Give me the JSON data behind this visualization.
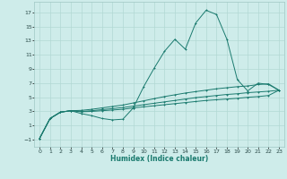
{
  "xlabel": "Humidex (Indice chaleur)",
  "bg_color": "#ceecea",
  "grid_color": "#b2d8d4",
  "line_color": "#1a7a6e",
  "xlim": [
    -0.5,
    23.5
  ],
  "ylim": [
    -2.0,
    18.5
  ],
  "xticks": [
    0,
    1,
    2,
    3,
    4,
    5,
    6,
    7,
    8,
    9,
    10,
    11,
    12,
    13,
    14,
    15,
    16,
    17,
    18,
    19,
    20,
    21,
    22,
    23
  ],
  "yticks": [
    -1,
    1,
    3,
    5,
    7,
    9,
    11,
    13,
    15,
    17
  ],
  "series1": [
    [
      0,
      -0.8
    ],
    [
      1,
      2.0
    ],
    [
      2,
      2.9
    ],
    [
      3,
      3.1
    ],
    [
      4,
      2.7
    ],
    [
      5,
      2.4
    ],
    [
      6,
      2.0
    ],
    [
      7,
      1.8
    ],
    [
      8,
      1.9
    ],
    [
      9,
      3.5
    ],
    [
      10,
      6.5
    ],
    [
      11,
      9.1
    ],
    [
      12,
      11.5
    ],
    [
      13,
      13.2
    ],
    [
      14,
      11.8
    ],
    [
      15,
      15.5
    ],
    [
      16,
      17.3
    ],
    [
      17,
      16.7
    ],
    [
      18,
      13.2
    ],
    [
      19,
      7.5
    ],
    [
      20,
      5.9
    ],
    [
      21,
      7.0
    ],
    [
      22,
      6.8
    ],
    [
      23,
      6.0
    ]
  ],
  "series2": [
    [
      0,
      -0.8
    ],
    [
      1,
      2.0
    ],
    [
      2,
      2.9
    ],
    [
      3,
      3.1
    ],
    [
      4,
      3.15
    ],
    [
      5,
      3.3
    ],
    [
      6,
      3.5
    ],
    [
      7,
      3.7
    ],
    [
      8,
      3.9
    ],
    [
      9,
      4.2
    ],
    [
      10,
      4.5
    ],
    [
      11,
      4.8
    ],
    [
      12,
      5.1
    ],
    [
      13,
      5.35
    ],
    [
      14,
      5.6
    ],
    [
      15,
      5.8
    ],
    [
      16,
      6.0
    ],
    [
      17,
      6.2
    ],
    [
      18,
      6.35
    ],
    [
      19,
      6.5
    ],
    [
      20,
      6.6
    ],
    [
      21,
      6.8
    ],
    [
      22,
      6.9
    ],
    [
      23,
      6.0
    ]
  ],
  "series3": [
    [
      0,
      -0.8
    ],
    [
      1,
      2.0
    ],
    [
      2,
      2.9
    ],
    [
      3,
      3.1
    ],
    [
      4,
      3.0
    ],
    [
      5,
      3.1
    ],
    [
      6,
      3.25
    ],
    [
      7,
      3.4
    ],
    [
      8,
      3.55
    ],
    [
      9,
      3.75
    ],
    [
      10,
      3.95
    ],
    [
      11,
      4.15
    ],
    [
      12,
      4.35
    ],
    [
      13,
      4.55
    ],
    [
      14,
      4.75
    ],
    [
      15,
      4.95
    ],
    [
      16,
      5.1
    ],
    [
      17,
      5.25
    ],
    [
      18,
      5.4
    ],
    [
      19,
      5.5
    ],
    [
      20,
      5.65
    ],
    [
      21,
      5.75
    ],
    [
      22,
      5.85
    ],
    [
      23,
      6.0
    ]
  ],
  "series4": [
    [
      0,
      -0.8
    ],
    [
      1,
      2.0
    ],
    [
      2,
      2.9
    ],
    [
      3,
      3.1
    ],
    [
      4,
      2.95
    ],
    [
      5,
      3.0
    ],
    [
      6,
      3.1
    ],
    [
      7,
      3.2
    ],
    [
      8,
      3.3
    ],
    [
      9,
      3.5
    ],
    [
      10,
      3.65
    ],
    [
      11,
      3.8
    ],
    [
      12,
      3.95
    ],
    [
      13,
      4.1
    ],
    [
      14,
      4.25
    ],
    [
      15,
      4.4
    ],
    [
      16,
      4.55
    ],
    [
      17,
      4.65
    ],
    [
      18,
      4.75
    ],
    [
      19,
      4.85
    ],
    [
      20,
      5.0
    ],
    [
      21,
      5.1
    ],
    [
      22,
      5.25
    ],
    [
      23,
      6.0
    ]
  ]
}
